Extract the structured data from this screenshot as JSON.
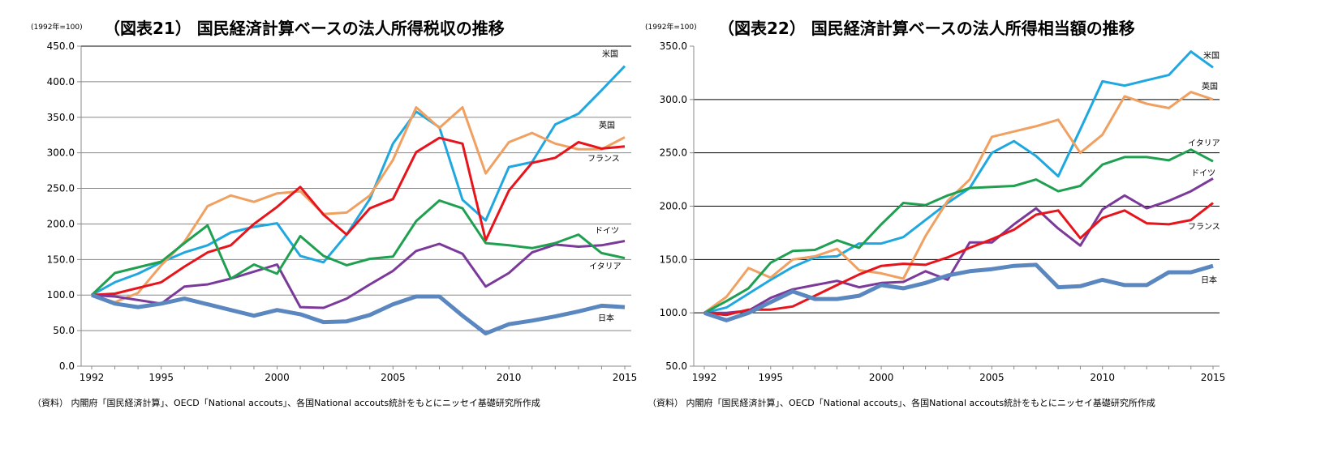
{
  "chart_data": [
    {
      "type": "line",
      "title": "（図表21） 国民経済計算ベースの法人所得税収の推移",
      "unit_note": "(1992年=100)",
      "source": "（資料） 内閣府「国民経済計算」、OECD「National accouts」、各国National accouts統計をもとにニッセイ基礎研究所作成",
      "xlabel": "",
      "ylabel": "",
      "x": [
        1992,
        1993,
        1994,
        1995,
        1996,
        1997,
        1998,
        1999,
        2000,
        2001,
        2002,
        2003,
        2004,
        2005,
        2006,
        2007,
        2008,
        2009,
        2010,
        2011,
        2012,
        2013,
        2014,
        2015
      ],
      "x_ticks": [
        "1992",
        "1995",
        "2000",
        "2005",
        "2010",
        "2015"
      ],
      "y_ticks": [
        "0.0",
        "50.0",
        "100.0",
        "150.0",
        "200.0",
        "250.0",
        "300.0",
        "350.0",
        "400.0",
        "450.0"
      ],
      "ylim": [
        0,
        450
      ],
      "grid": true,
      "legend": "inline labels at line ends",
      "series": [
        {
          "name": "米国",
          "color": "#1fa8e0",
          "values": [
            100,
            118,
            130,
            146,
            160,
            170,
            188,
            196,
            201,
            155,
            146,
            185,
            235,
            313,
            358,
            336,
            234,
            205,
            280,
            287,
            340,
            355,
            388,
            422
          ]
        },
        {
          "name": "英国",
          "color": "#f0a060",
          "values": [
            100,
            90,
            103,
            142,
            175,
            225,
            240,
            231,
            243,
            246,
            214,
            216,
            240,
            290,
            364,
            335,
            364,
            271,
            315,
            328,
            313,
            305,
            305,
            322
          ]
        },
        {
          "name": "フランス",
          "color": "#e8141c",
          "values": [
            100,
            102,
            110,
            118,
            140,
            160,
            170,
            200,
            224,
            252,
            213,
            185,
            222,
            235,
            301,
            321,
            313,
            177,
            247,
            286,
            293,
            315,
            306,
            309
          ]
        },
        {
          "name": "ドイツ",
          "color": "#7b3a9a",
          "values": [
            100,
            98,
            93,
            88,
            112,
            115,
            123,
            133,
            143,
            83,
            82,
            95,
            115,
            134,
            162,
            172,
            158,
            112,
            131,
            160,
            171,
            168,
            170,
            176
          ]
        },
        {
          "name": "イタリア",
          "color": "#1fa050",
          "values": [
            100,
            131,
            139,
            147,
            173,
            198,
            123,
            143,
            130,
            183,
            155,
            142,
            151,
            154,
            204,
            233,
            222,
            173,
            170,
            166,
            173,
            185,
            159,
            152
          ]
        },
        {
          "name": "日本",
          "color": "#5b87c0",
          "values": [
            100,
            88,
            83,
            88,
            95,
            87,
            79,
            71,
            79,
            73,
            62,
            63,
            72,
            87,
            98,
            98,
            71,
            46,
            59,
            64,
            70,
            77,
            85,
            83
          ]
        }
      ]
    },
    {
      "type": "line",
      "title": "（図表22） 国民経済計算ベースの法人所得相当額の推移",
      "unit_note": "(1992年=100)",
      "source": "（資料） 内閣府「国民経済計算」、OECD「National accouts」、各国National accouts統計をもとにニッセイ基礎研究所作成",
      "xlabel": "",
      "ylabel": "",
      "x": [
        1992,
        1993,
        1994,
        1995,
        1996,
        1997,
        1998,
        1999,
        2000,
        2001,
        2002,
        2003,
        2004,
        2005,
        2006,
        2007,
        2008,
        2009,
        2010,
        2011,
        2012,
        2013,
        2014,
        2015
      ],
      "x_ticks": [
        "1992",
        "1995",
        "2000",
        "2005",
        "2010",
        "2015"
      ],
      "y_ticks": [
        "50.0",
        "100.0",
        "150.0",
        "200.0",
        "250.0",
        "300.0",
        "350.0"
      ],
      "ylim": [
        50,
        350
      ],
      "grid": true,
      "legend": "inline labels at line ends",
      "series": [
        {
          "name": "米国",
          "color": "#1fa8e0",
          "values": [
            100,
            105,
            118,
            131,
            143,
            152,
            153,
            165,
            165,
            171,
            187,
            203,
            217,
            250,
            261,
            247,
            228,
            272,
            317,
            313,
            318,
            323,
            345,
            330
          ]
        },
        {
          "name": "英国",
          "color": "#f0a060",
          "values": [
            100,
            115,
            142,
            133,
            150,
            153,
            160,
            140,
            137,
            132,
            172,
            205,
            225,
            265,
            270,
            275,
            281,
            250,
            267,
            303,
            296,
            292,
            307,
            300
          ]
        },
        {
          "name": "イタリア",
          "color": "#1fa050",
          "values": [
            100,
            111,
            123,
            147,
            158,
            159,
            168,
            161,
            183,
            203,
            201,
            210,
            217,
            218,
            219,
            225,
            214,
            219,
            239,
            246,
            246,
            243,
            253,
            242
          ]
        },
        {
          "name": "ドイツ",
          "color": "#7b3a9a",
          "values": [
            100,
            100,
            102,
            114,
            122,
            126,
            130,
            124,
            128,
            129,
            139,
            131,
            166,
            166,
            183,
            198,
            179,
            163,
            197,
            210,
            198,
            205,
            214,
            226
          ]
        },
        {
          "name": "フランス",
          "color": "#e8141c",
          "values": [
            100,
            98,
            103,
            103,
            106,
            116,
            126,
            136,
            144,
            146,
            145,
            152,
            161,
            169,
            178,
            192,
            196,
            170,
            189,
            196,
            184,
            183,
            187,
            203
          ]
        },
        {
          "name": "日本",
          "color": "#5b87c0",
          "values": [
            100,
            93,
            100,
            110,
            120,
            113,
            113,
            116,
            126,
            123,
            128,
            135,
            139,
            141,
            144,
            145,
            124,
            125,
            131,
            126,
            126,
            138,
            138,
            144
          ]
        }
      ]
    }
  ]
}
